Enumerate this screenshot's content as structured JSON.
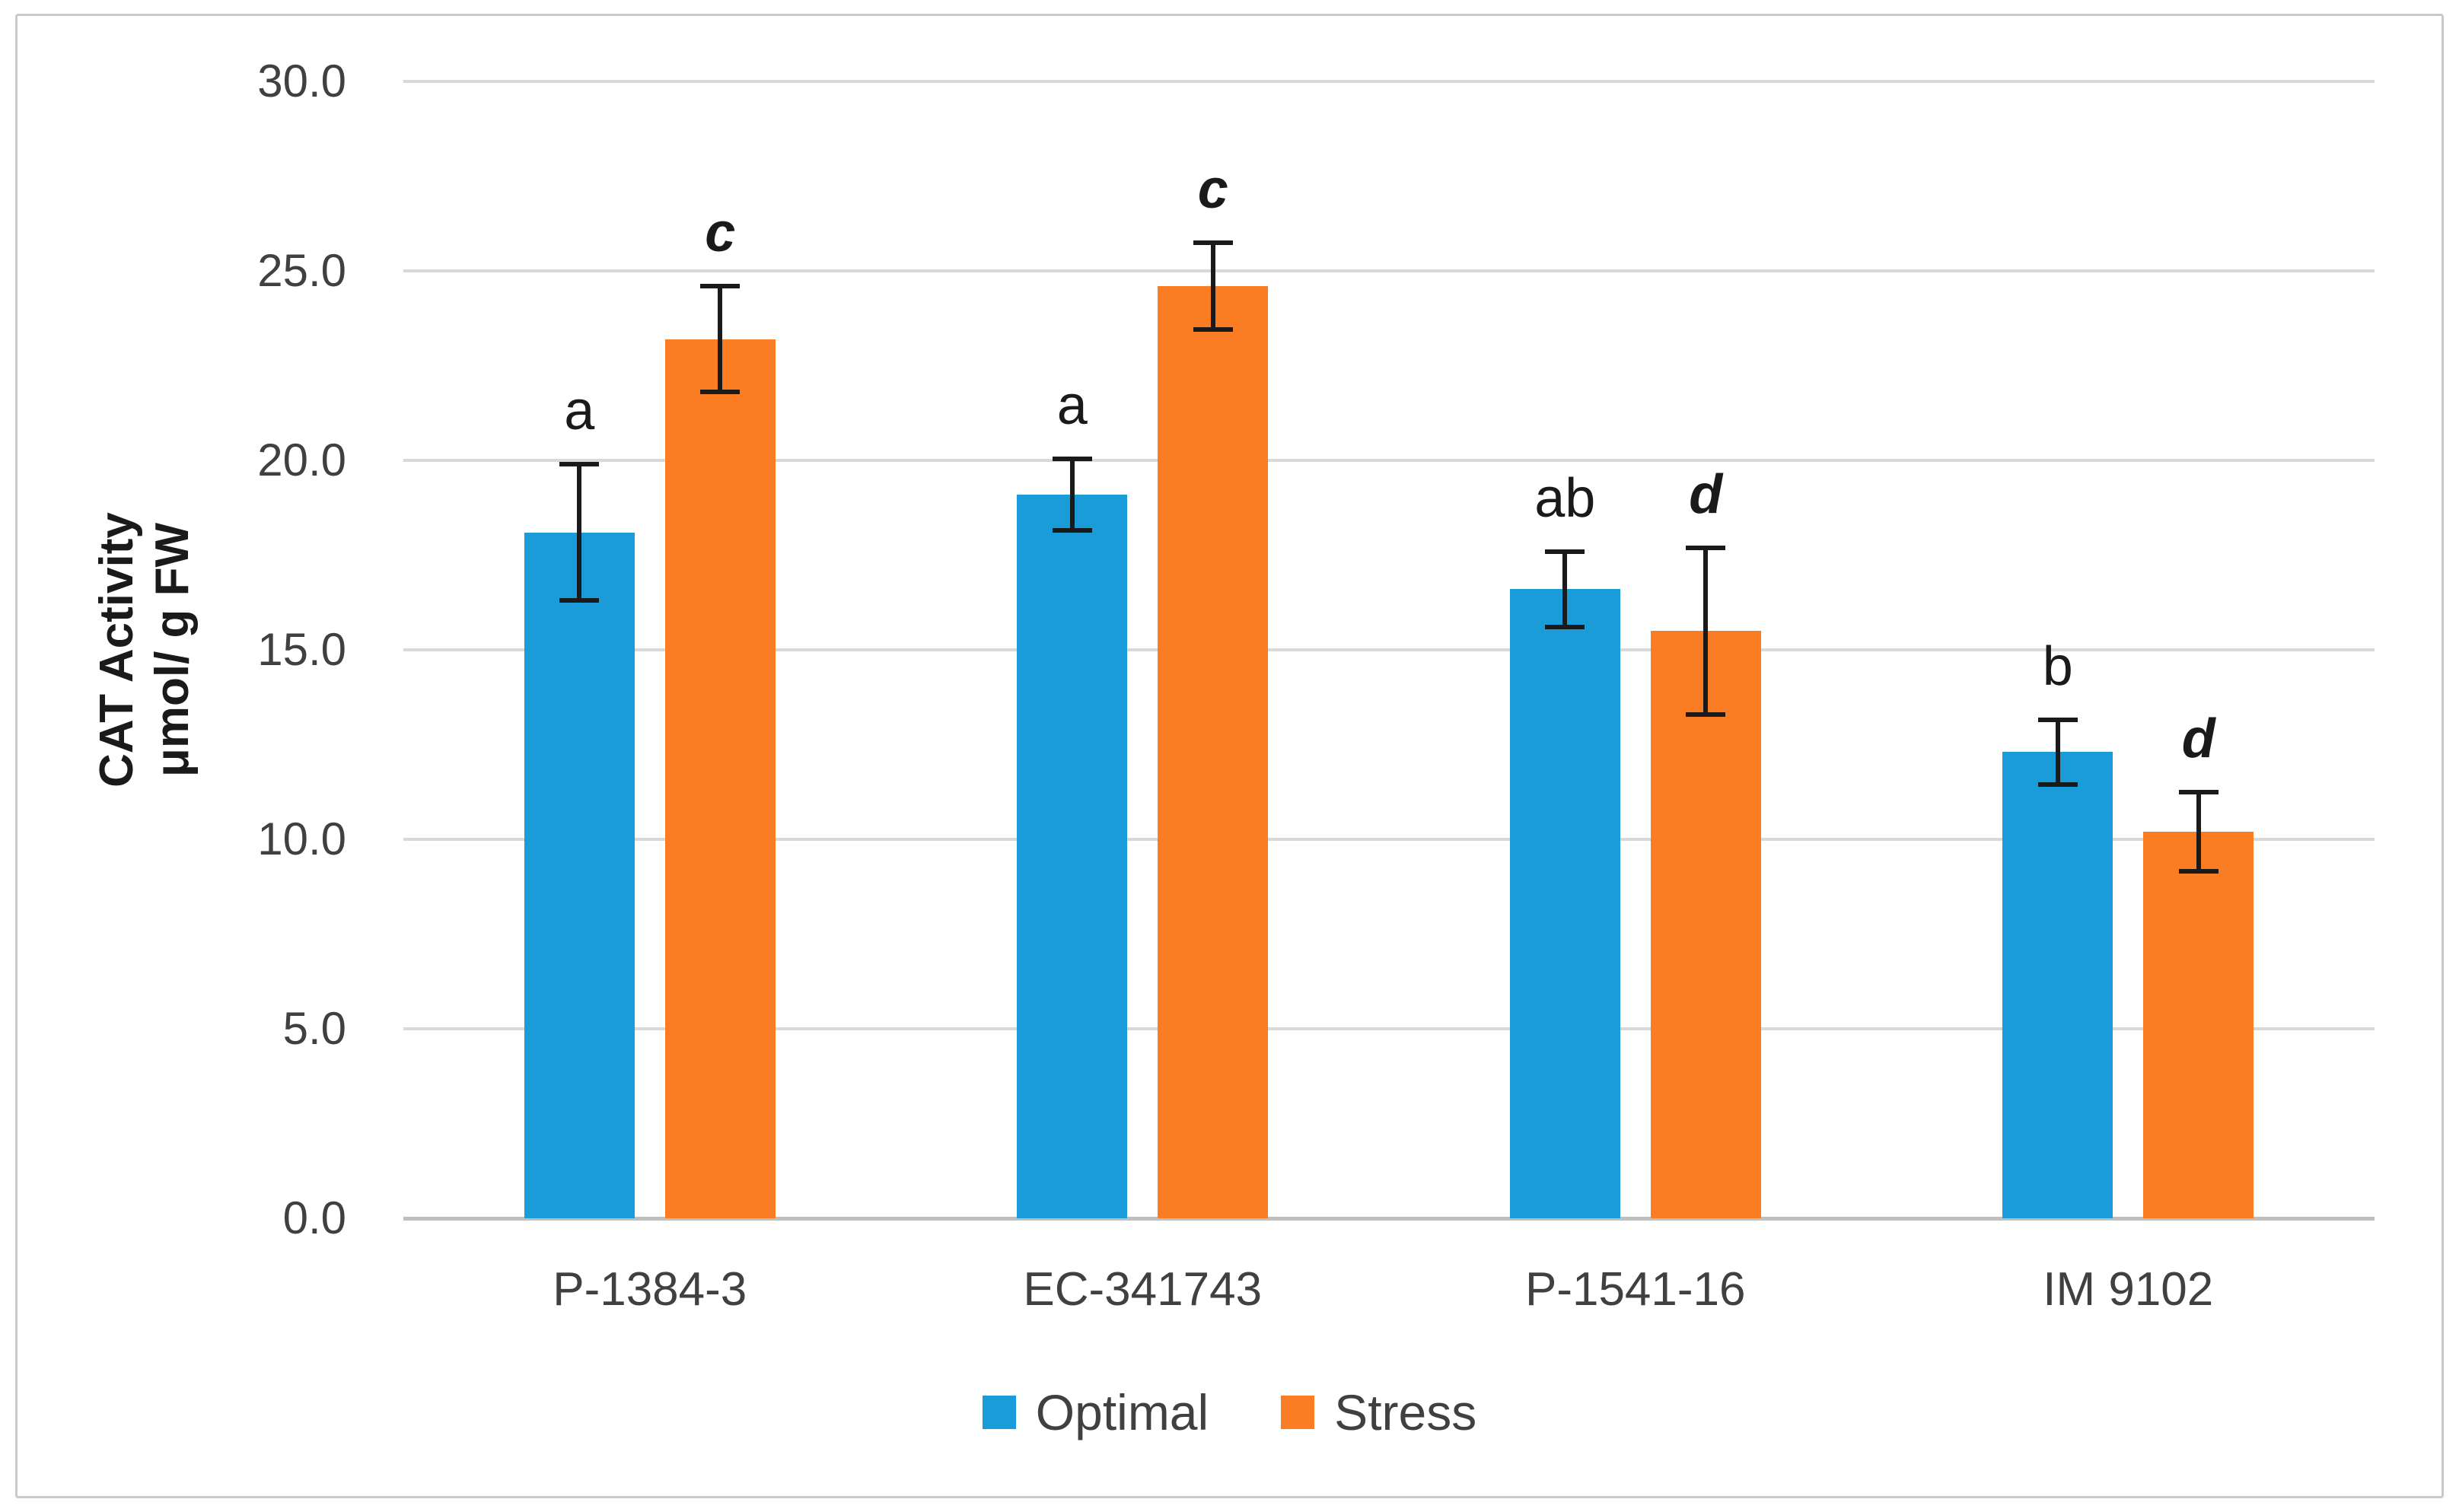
{
  "figure": {
    "background_color": "#ffffff",
    "border_color": "#c9c9c9"
  },
  "chart_data": {
    "type": "bar",
    "title": "",
    "ylabel_line1": "CAT Activity",
    "ylabel_line2": "μmol/ g FW",
    "xlabel": "",
    "categories": [
      "P-1384-3",
      "EC-341743",
      "P-1541-16",
      "IM 9102"
    ],
    "series": [
      {
        "name": "Optimal",
        "color": "#1a9cd8",
        "values": [
          18.1,
          19.1,
          16.6,
          12.3
        ],
        "errors": [
          1.8,
          0.95,
          1.0,
          0.85
        ],
        "letters": [
          "a",
          "a",
          "ab",
          "b"
        ],
        "letter_italic": false
      },
      {
        "name": "Stress",
        "color": "#fb7d23",
        "values": [
          23.2,
          24.6,
          15.5,
          10.2
        ],
        "errors": [
          1.4,
          1.15,
          2.2,
          1.05
        ],
        "letters": [
          "c",
          "c",
          "d",
          "d"
        ],
        "letter_italic": true
      }
    ],
    "ylim": [
      0,
      30
    ],
    "ytick_step": 5,
    "ytick_labels": [
      "0.0",
      "5.0",
      "10.0",
      "15.0",
      "20.0",
      "25.0",
      "30.0"
    ],
    "grid": true,
    "grid_color": "#d9d9d9",
    "axis_line_color": "#bfbfbf",
    "tick_text_color": "#404040",
    "error_bar_color": "#1a1a1a",
    "legend_position": "bottom"
  }
}
